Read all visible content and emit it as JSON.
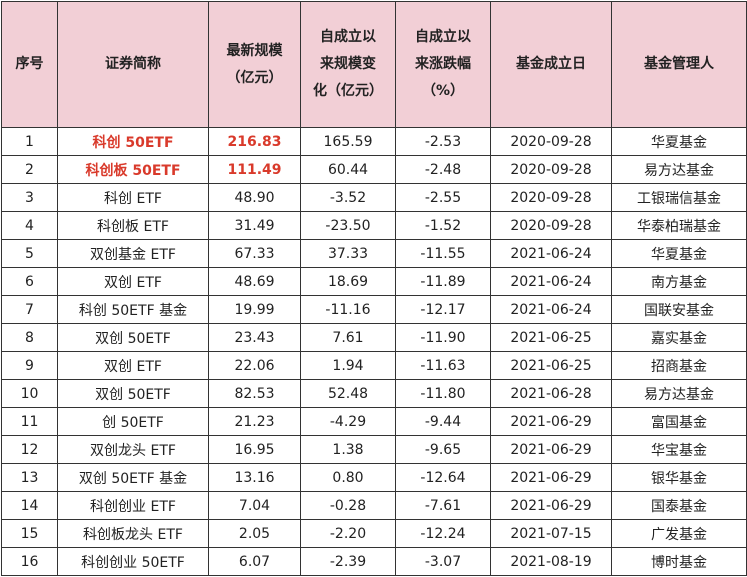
{
  "table": {
    "headers": [
      "序号",
      "证券简称",
      "最新规模（亿元）",
      "自成立以来规模变化（亿元）",
      "自成立以来涨跌幅（%）",
      "基金成立日",
      "基金管理人"
    ],
    "header_lines": [
      [
        "序号"
      ],
      [
        "证券简称"
      ],
      [
        "最新规模",
        "（亿元）"
      ],
      [
        "自成立以",
        "来规模变",
        "化（亿元）"
      ],
      [
        "自成立以",
        "来涨跌幅",
        "（%）"
      ],
      [
        "基金成立日"
      ],
      [
        "基金管理人"
      ]
    ],
    "highlight_color": "#d93a2b",
    "header_bg": "#f2cfd6",
    "rows": [
      {
        "no": "1",
        "name": "科创 50ETF",
        "scale": "216.83",
        "scale_change": "165.59",
        "return_pct": "-2.53",
        "inception": "2020-09-28",
        "manager": "华夏基金",
        "highlight": true
      },
      {
        "no": "2",
        "name": "科创板 50ETF",
        "scale": "111.49",
        "scale_change": "60.44",
        "return_pct": "-2.48",
        "inception": "2020-09-28",
        "manager": "易方达基金",
        "highlight": true
      },
      {
        "no": "3",
        "name": "科创 ETF",
        "scale": "48.90",
        "scale_change": "-3.52",
        "return_pct": "-2.55",
        "inception": "2020-09-28",
        "manager": "工银瑞信基金",
        "highlight": false
      },
      {
        "no": "4",
        "name": "科创板 ETF",
        "scale": "31.49",
        "scale_change": "-23.50",
        "return_pct": "-1.52",
        "inception": "2020-09-28",
        "manager": "华泰柏瑞基金",
        "highlight": false
      },
      {
        "no": "5",
        "name": "双创基金 ETF",
        "scale": "67.33",
        "scale_change": "37.33",
        "return_pct": "-11.55",
        "inception": "2021-06-24",
        "manager": "华夏基金",
        "highlight": false
      },
      {
        "no": "6",
        "name": "双创 ETF",
        "scale": "48.69",
        "scale_change": "18.69",
        "return_pct": "-11.89",
        "inception": "2021-06-24",
        "manager": "南方基金",
        "highlight": false
      },
      {
        "no": "7",
        "name": "科创 50ETF 基金",
        "scale": "19.99",
        "scale_change": "-11.16",
        "return_pct": "-12.17",
        "inception": "2021-06-24",
        "manager": "国联安基金",
        "highlight": false
      },
      {
        "no": "8",
        "name": "双创 50ETF",
        "scale": "23.43",
        "scale_change": "7.61",
        "return_pct": "-11.90",
        "inception": "2021-06-25",
        "manager": "嘉实基金",
        "highlight": false
      },
      {
        "no": "9",
        "name": "双创 ETF",
        "scale": "22.06",
        "scale_change": "1.94",
        "return_pct": "-11.63",
        "inception": "2021-06-25",
        "manager": "招商基金",
        "highlight": false
      },
      {
        "no": "10",
        "name": "双创 50ETF",
        "scale": "82.53",
        "scale_change": "52.48",
        "return_pct": "-11.80",
        "inception": "2021-06-28",
        "manager": "易方达基金",
        "highlight": false
      },
      {
        "no": "11",
        "name": "创 50ETF",
        "scale": "21.23",
        "scale_change": "-4.29",
        "return_pct": "-9.44",
        "inception": "2021-06-29",
        "manager": "富国基金",
        "highlight": false
      },
      {
        "no": "12",
        "name": "双创龙头 ETF",
        "scale": "16.95",
        "scale_change": "1.38",
        "return_pct": "-9.65",
        "inception": "2021-06-29",
        "manager": "华宝基金",
        "highlight": false
      },
      {
        "no": "13",
        "name": "双创 50ETF 基金",
        "scale": "13.16",
        "scale_change": "0.80",
        "return_pct": "-12.64",
        "inception": "2021-06-29",
        "manager": "银华基金",
        "highlight": false
      },
      {
        "no": "14",
        "name": "科创创业 ETF",
        "scale": "7.04",
        "scale_change": "-0.28",
        "return_pct": "-7.61",
        "inception": "2021-06-29",
        "manager": "国泰基金",
        "highlight": false
      },
      {
        "no": "15",
        "name": "科创板龙头 ETF",
        "scale": "2.05",
        "scale_change": "-2.20",
        "return_pct": "-12.24",
        "inception": "2021-07-15",
        "manager": "广发基金",
        "highlight": false
      },
      {
        "no": "16",
        "name": "科创创业 50ETF",
        "scale": "6.07",
        "scale_change": "-2.39",
        "return_pct": "-3.07",
        "inception": "2021-08-19",
        "manager": "博时基金",
        "highlight": false
      }
    ]
  }
}
